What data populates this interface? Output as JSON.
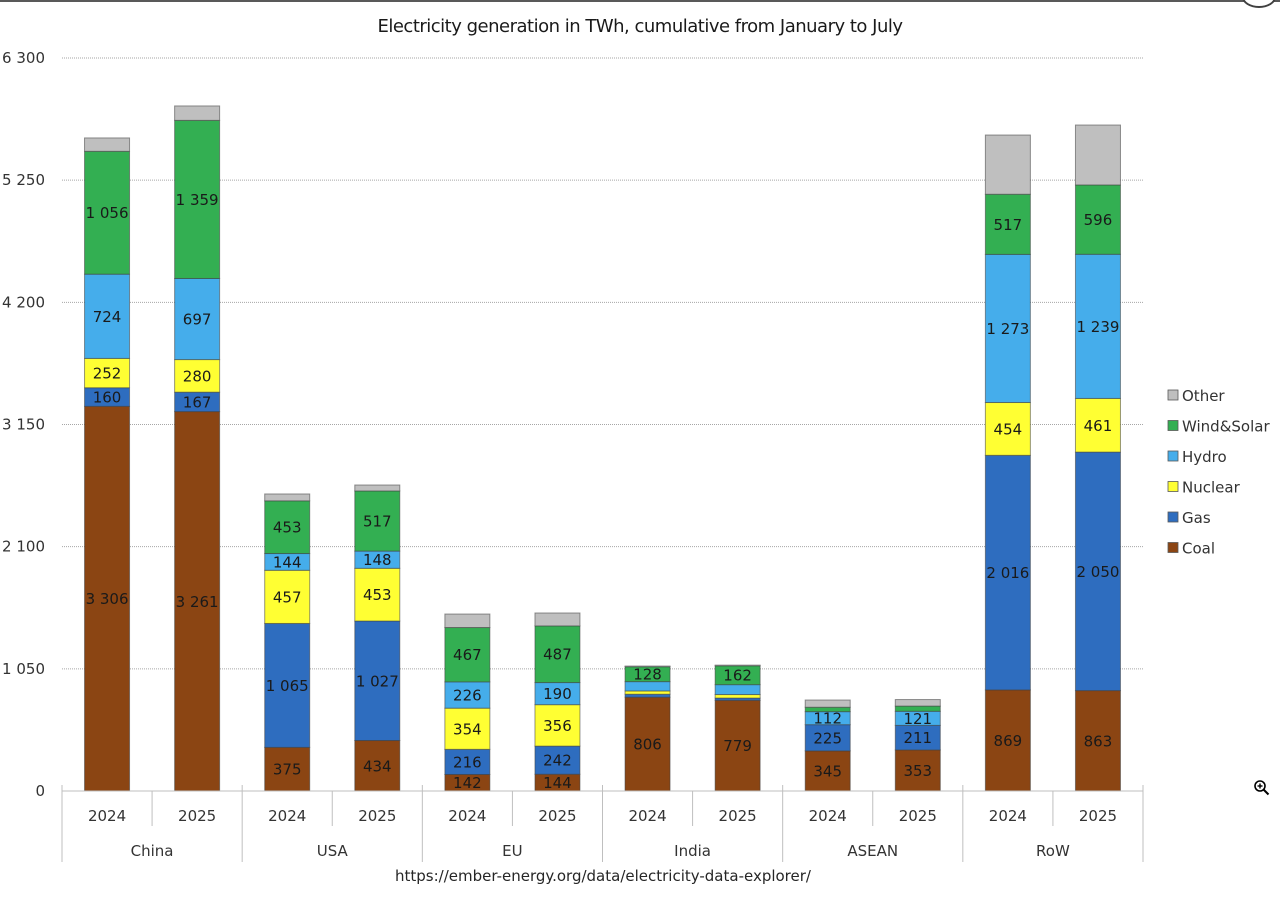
{
  "chart_data": {
    "type": "bar",
    "stacked": true,
    "title": "Electricity generation in TWh, cumulative from January to July",
    "xlabel": "",
    "ylabel": "",
    "ylim": [
      0,
      6300
    ],
    "yticks": [
      0,
      1050,
      2100,
      3150,
      4200,
      5250,
      6300
    ],
    "ytick_labels": [
      "0",
      "1 050",
      "2 100",
      "3 150",
      "4 200",
      "5 250",
      "6 300"
    ],
    "grid": true,
    "legend_position": "right",
    "groups": [
      {
        "name": "China",
        "categories": [
          "2024",
          "2025"
        ]
      },
      {
        "name": "USA",
        "categories": [
          "2024",
          "2025"
        ]
      },
      {
        "name": "EU",
        "categories": [
          "2024",
          "2025"
        ]
      },
      {
        "name": "India",
        "categories": [
          "2024",
          "2025"
        ]
      },
      {
        "name": "ASEAN",
        "categories": [
          "2024",
          "2025"
        ]
      },
      {
        "name": "RoW",
        "categories": [
          "2024",
          "2025"
        ]
      }
    ],
    "categories": [
      "China 2024",
      "China 2025",
      "USA 2024",
      "USA 2025",
      "EU 2024",
      "EU 2025",
      "India 2024",
      "India 2025",
      "ASEAN 2024",
      "ASEAN 2025",
      "RoW 2024",
      "RoW 2025"
    ],
    "series": [
      {
        "name": "Coal",
        "color": "#8B4513",
        "values": [
          3306,
          3261,
          375,
          434,
          142,
          144,
          806,
          779,
          345,
          353,
          869,
          863
        ],
        "labels": [
          "3 306",
          "3 261",
          "375",
          "434",
          "142",
          "144",
          "806",
          "779",
          "345",
          "353",
          "869",
          "863"
        ]
      },
      {
        "name": "Gas",
        "color": "#2E6DBF",
        "values": [
          160,
          167,
          1065,
          1027,
          216,
          242,
          26,
          20,
          225,
          211,
          2016,
          2050
        ],
        "labels": [
          "160",
          "167",
          "1 065",
          "1 027",
          "216",
          "242",
          "",
          "",
          "225",
          "211",
          "2 016",
          "2 050"
        ]
      },
      {
        "name": "Nuclear",
        "color": "#FFFF33",
        "values": [
          252,
          280,
          457,
          453,
          354,
          356,
          28,
          30,
          0,
          0,
          454,
          461
        ],
        "labels": [
          "252",
          "280",
          "457",
          "453",
          "354",
          "356",
          "",
          "",
          "",
          "",
          "454",
          "461"
        ]
      },
      {
        "name": "Hydro",
        "color": "#45ADEB",
        "values": [
          724,
          697,
          144,
          148,
          226,
          190,
          80,
          85,
          112,
          121,
          1273,
          1239
        ],
        "labels": [
          "724",
          "697",
          "144",
          "148",
          "226",
          "190",
          "",
          "",
          "112",
          "121",
          "1 273",
          "1 239"
        ]
      },
      {
        "name": "Wind&Solar",
        "color": "#33AF52",
        "values": [
          1056,
          1359,
          453,
          517,
          467,
          487,
          128,
          162,
          38,
          45,
          517,
          596
        ],
        "labels": [
          "1 056",
          "1 359",
          "453",
          "517",
          "467",
          "487",
          "128",
          "162",
          "",
          "",
          "517",
          "596"
        ]
      },
      {
        "name": "Other",
        "color": "#BFBFBF",
        "values": [
          115,
          124,
          59,
          51,
          116,
          111,
          6,
          6,
          62,
          56,
          509,
          515
        ],
        "labels": [
          "",
          "",
          "",
          "",
          "",
          "",
          "",
          "",
          "",
          "",
          "",
          ""
        ]
      }
    ],
    "legend_order": [
      "Other",
      "Wind&Solar",
      "Hydro",
      "Nuclear",
      "Gas",
      "Coal"
    ],
    "source": "https://ember-energy.org/data/electricity-data-explorer/"
  }
}
